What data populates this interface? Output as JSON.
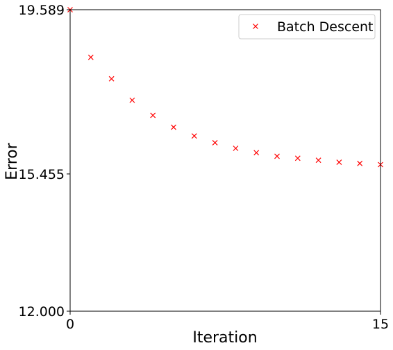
{
  "chart_data": {
    "type": "scatter",
    "title": "",
    "xlabel": "Iteration",
    "ylabel": "Error",
    "xlim": [
      0,
      15
    ],
    "ylim": [
      12.0,
      19.589
    ],
    "x_ticks": [
      "0",
      "15"
    ],
    "y_ticks": [
      "12.000",
      "15.455",
      "19.589"
    ],
    "x_tick_values": [
      0,
      15
    ],
    "y_tick_values": [
      12.0,
      15.455,
      19.589
    ],
    "grid": false,
    "legend_position": "top-right",
    "marker": "x",
    "series": [
      {
        "name": "Batch Descent",
        "color": "#ff0000",
        "x": [
          0,
          1,
          2,
          3,
          4,
          5,
          6,
          7,
          8,
          9,
          10,
          11,
          12,
          13,
          14,
          15
        ],
        "y": [
          19.589,
          18.39,
          17.85,
          17.31,
          16.93,
          16.63,
          16.41,
          16.24,
          16.1,
          15.99,
          15.9,
          15.85,
          15.8,
          15.75,
          15.72,
          15.69
        ]
      }
    ]
  }
}
